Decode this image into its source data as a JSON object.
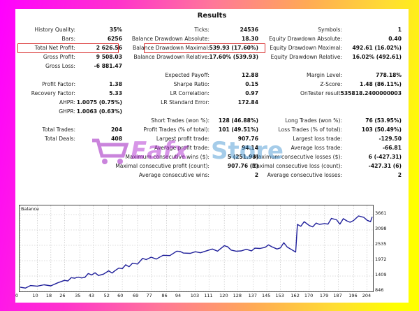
{
  "report": {
    "title": "Results",
    "col1": [
      {
        "label": "History Quality:",
        "value": "35%"
      },
      {
        "label": "Bars:",
        "value": "6256"
      },
      {
        "label": "Total Net Profit:",
        "value": "2 626.56",
        "highlighted": true
      },
      {
        "label": "Gross Profit:",
        "value": "9 508.03"
      },
      {
        "label": "Gross Loss:",
        "value": "-6 881.47"
      },
      {
        "label": "Profit Factor:",
        "value": "1.38"
      },
      {
        "label": "Recovery Factor:",
        "value": "5.33"
      },
      {
        "label": "AHPR:",
        "value": "1.0075 (0.75%)"
      },
      {
        "label": "GHPR:",
        "value": "1.0063 (0.63%)"
      },
      {
        "label": "Total Trades:",
        "value": "204"
      },
      {
        "label": "Total Deals:",
        "value": "408"
      }
    ],
    "col2": [
      {
        "label": "Ticks:",
        "value": "24536"
      },
      {
        "label": "Balance Drawdown Absolute:",
        "value": "18.30"
      },
      {
        "label": "Balance Drawdown Maximal:",
        "value": "539.93 (17.60%)",
        "highlighted": true
      },
      {
        "label": "Balance Drawdown Relative:",
        "value": "17.60% (539.93)"
      },
      {
        "label": "Expected Payoff:",
        "value": "12.88"
      },
      {
        "label": "Sharpe Ratio:",
        "value": "0.15"
      },
      {
        "label": "LR Correlation:",
        "value": "0.97"
      },
      {
        "label": "LR Standard Error:",
        "value": "172.84"
      },
      {
        "label": "Short Trades (won %):",
        "value": "128 (46.88%)"
      },
      {
        "label": "Profit Trades (% of total):",
        "value": "101 (49.51%)"
      },
      {
        "label": "Largest profit trade:",
        "value": "907.76"
      },
      {
        "label": "Average profit trade:",
        "value": "94.14"
      },
      {
        "label": "Maximum consecutive wins ($):",
        "value": "5 (251.98)"
      },
      {
        "label": "Maximal consecutive profit (count):",
        "value": "907.76 (1)"
      },
      {
        "label": "Average consecutive wins:",
        "value": "2"
      }
    ],
    "col3": [
      {
        "label": "Symbols:",
        "value": "1"
      },
      {
        "label": "Equity Drawdown Absolute:",
        "value": "0.40"
      },
      {
        "label": "Equity Drawdown Maximal:",
        "value": "492.61 (16.02%)"
      },
      {
        "label": "Equity Drawdown Relative:",
        "value": "16.02% (492.61)"
      },
      {
        "label": "Margin Level:",
        "value": "778.18%"
      },
      {
        "label": "Z-Score:",
        "value": "1.48 (86.11%)"
      },
      {
        "label": "OnTester result:",
        "value": "535818.2400000003"
      },
      {
        "label": "Long Trades (won %):",
        "value": "76 (53.95%)"
      },
      {
        "label": "Loss Trades (% of total):",
        "value": "103 (50.49%)"
      },
      {
        "label": "Largest loss trade:",
        "value": "-129.50"
      },
      {
        "label": "Average loss trade:",
        "value": "-66.81"
      },
      {
        "label": "Maximum consecutive losses ($):",
        "value": "6 (-427.31)"
      },
      {
        "label": "Maximal consecutive loss (count):",
        "value": "-427.31 (6)"
      },
      {
        "label": "Average consecutive losses:",
        "value": "2"
      }
    ],
    "highlight_color": "#d9302f"
  },
  "watermark": {
    "text_a": "Eafx",
    "text_b": "Store"
  },
  "chart_data": {
    "type": "line",
    "title": "Balance",
    "xlabel": "",
    "ylabel": "",
    "x_ticks": [
      "0",
      "10",
      "18",
      "26",
      "35",
      "43",
      "52",
      "60",
      "69",
      "77",
      "86",
      "94",
      "103",
      "111",
      "120",
      "128",
      "137",
      "145",
      "153",
      "162",
      "170",
      "179",
      "187",
      "196",
      "204"
    ],
    "y_ticks": [
      "3661",
      "3098",
      "2535",
      "1972",
      "1409",
      "846"
    ],
    "ylim": [
      846,
      4000
    ],
    "xlim": [
      0,
      207
    ],
    "grid": true,
    "line_color": "#1f1f9a",
    "series": [
      {
        "name": "Balance",
        "x": [
          0,
          3,
          6,
          10,
          14,
          18,
          22,
          26,
          28,
          30,
          32,
          34,
          36,
          38,
          40,
          42,
          44,
          46,
          49,
          52,
          54,
          56,
          58,
          60,
          62,
          64,
          66,
          69,
          72,
          74,
          77,
          80,
          84,
          88,
          92,
          94,
          96,
          100,
          103,
          106,
          110,
          113,
          116,
          120,
          122,
          124,
          127,
          130,
          133,
          136,
          138,
          141,
          144,
          146,
          148,
          151,
          153,
          155,
          157,
          160,
          162,
          163,
          165,
          167,
          170,
          172,
          174,
          176,
          179,
          181,
          183,
          186,
          188,
          190,
          192,
          194,
          196,
          199,
          202,
          204,
          206,
          207
        ],
        "values": [
          1000,
          970,
          1060,
          1040,
          1090,
          1050,
          1160,
          1250,
          1230,
          1350,
          1330,
          1370,
          1340,
          1360,
          1500,
          1450,
          1530,
          1430,
          1480,
          1600,
          1520,
          1620,
          1700,
          1680,
          1820,
          1750,
          1880,
          1850,
          2060,
          2010,
          2100,
          2030,
          2170,
          2160,
          2320,
          2310,
          2250,
          2240,
          2300,
          2260,
          2340,
          2400,
          2320,
          2520,
          2480,
          2360,
          2320,
          2330,
          2390,
          2330,
          2430,
          2420,
          2460,
          2550,
          2480,
          2400,
          2440,
          2630,
          2470,
          2360,
          2290,
          3300,
          3230,
          3400,
          3260,
          3210,
          3350,
          3300,
          3330,
          3310,
          3520,
          3470,
          3310,
          3510,
          3430,
          3380,
          3440,
          3610,
          3560,
          3450,
          3400,
          3580
        ]
      }
    ]
  }
}
